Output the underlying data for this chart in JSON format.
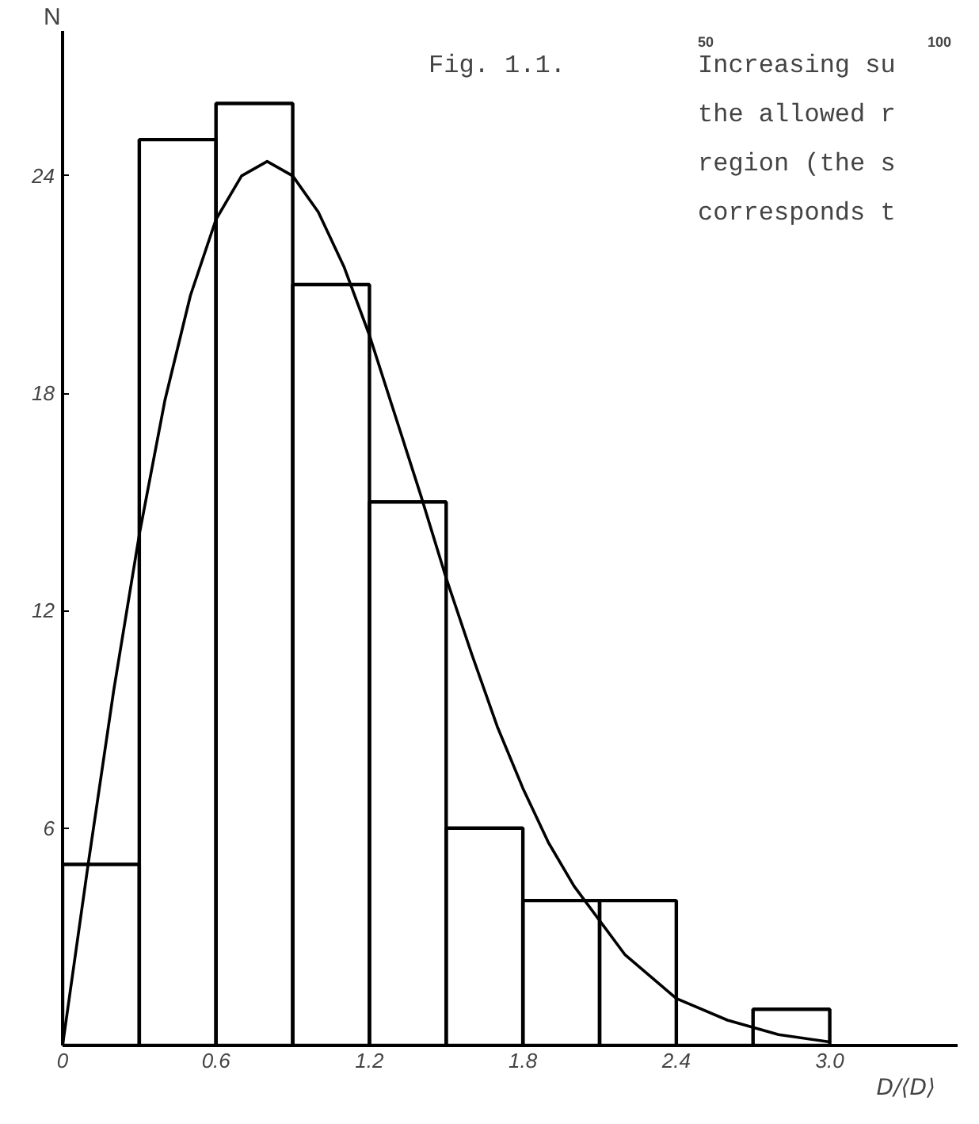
{
  "chart_data": {
    "type": "histogram",
    "title": "Fig. 1.1.",
    "xlabel": "D/⟨D⟩",
    "ylabel": "N",
    "bins": [
      0,
      0.3,
      0.6,
      0.9,
      1.2,
      1.5,
      1.8,
      2.1,
      2.4,
      2.7,
      3.0
    ],
    "values": [
      5,
      25,
      26,
      21,
      15,
      6,
      4,
      4,
      0,
      1
    ],
    "color": "#000000",
    "series": [
      {
        "type": "line",
        "color": "#000000",
        "x": [
          0,
          0.1,
          0.2,
          0.3,
          0.4,
          0.5,
          0.6,
          0.7,
          0.8,
          0.9,
          1.0,
          1.1,
          1.2,
          1.3,
          1.4,
          1.5,
          1.6,
          1.7,
          1.8,
          1.9,
          2.0,
          2.2,
          2.4,
          2.6,
          2.8,
          3.0
        ],
        "values": [
          0,
          5.0,
          9.8,
          14.1,
          17.8,
          20.7,
          22.8,
          24.0,
          24.4,
          24.0,
          23.0,
          21.5,
          19.6,
          17.4,
          15.2,
          12.9,
          10.8,
          8.8,
          7.1,
          5.6,
          4.4,
          2.5,
          1.3,
          0.7,
          0.3,
          0.1
        ]
      }
    ],
    "xlim": [
      0,
      3.5
    ],
    "ylim": [
      0,
      28
    ],
    "xticks": [
      0,
      0.6,
      1.2,
      1.8,
      2.4,
      {
        "value": 3.0,
        "label": "3.0"
      }
    ],
    "yticks": [
      6,
      12,
      24,
      18
    ],
    "grid": false,
    "annotations": [
      "50",
      "100",
      "Increasing su",
      "the allowed r",
      "region (the s",
      "corresponds t"
    ]
  }
}
